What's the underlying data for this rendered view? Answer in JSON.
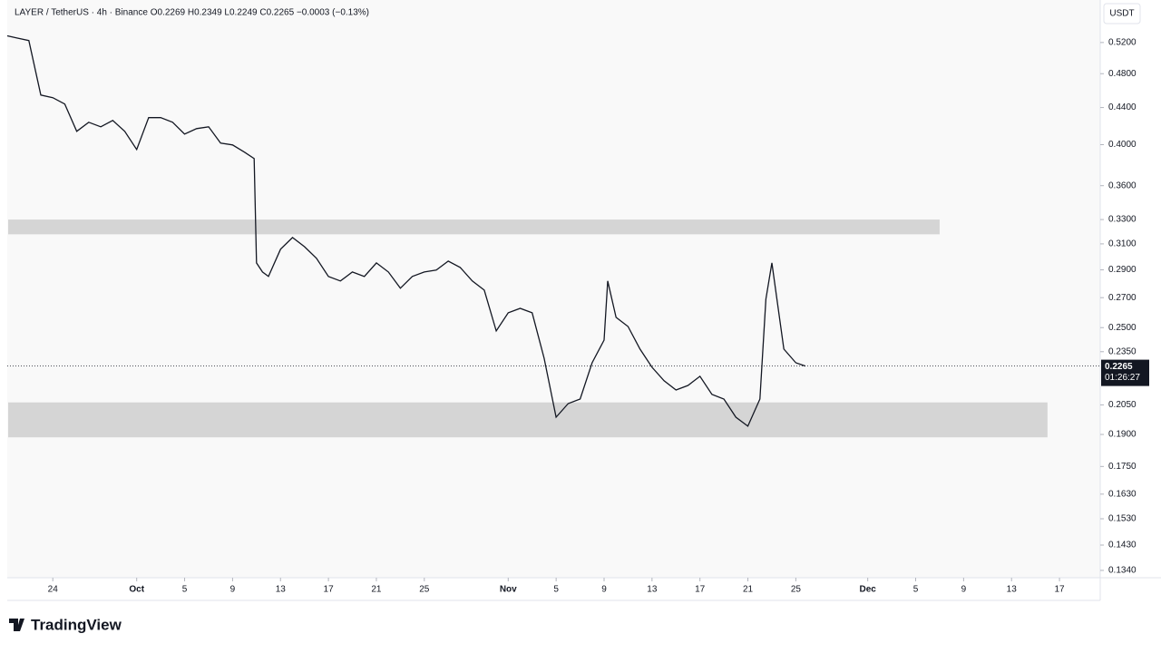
{
  "header": "LAYER / TetherUS · 4h · Binance  O0.2269  H0.2349  L0.2249  C0.2265  −0.0003 (−0.13%)",
  "currency": "USDT",
  "brand": "TradingView",
  "chart_data": {
    "type": "line",
    "log_scale": true,
    "color": "#131722",
    "x": [
      -10.8,
      -10,
      -9,
      -8,
      -7,
      -6,
      -5,
      -4,
      -3,
      -2,
      -1,
      0,
      1,
      2,
      3,
      4,
      5,
      6,
      7,
      8,
      9,
      9.8,
      10,
      10.5,
      11,
      12,
      13,
      14,
      15,
      16,
      17,
      18,
      19,
      20,
      21,
      22,
      23,
      24,
      25,
      26,
      27,
      28,
      29,
      30,
      31,
      32,
      33,
      34,
      35,
      36,
      37,
      38,
      39,
      39.3,
      40,
      41,
      42,
      43,
      44,
      45,
      46,
      47,
      48,
      49,
      50,
      51,
      52,
      52.5,
      53,
      54,
      55,
      55.8
    ],
    "series": [
      {
        "name": "LAYER / TetherUS",
        "color": "#131722",
        "values": [
          0.529,
          0.526,
          0.5226,
          0.4544,
          0.4513,
          0.444,
          0.4139,
          0.4237,
          0.4188,
          0.4257,
          0.4139,
          0.3951,
          0.4287,
          0.4287,
          0.4237,
          0.411,
          0.4168,
          0.4188,
          0.4016,
          0.3997,
          0.3923,
          0.386,
          0.2952,
          0.2884,
          0.2851,
          0.3058,
          0.3151,
          0.3078,
          0.2987,
          0.2851,
          0.2818,
          0.2884,
          0.2851,
          0.2952,
          0.2884,
          0.2766,
          0.2851,
          0.2884,
          0.2898,
          0.2966,
          0.2918,
          0.2818,
          0.2753,
          0.2479,
          0.2597,
          0.2627,
          0.2597,
          0.2311,
          0.1986,
          0.2057,
          0.2081,
          0.2284,
          0.2421,
          0.2818,
          0.2567,
          0.2507,
          0.2366,
          0.2258,
          0.2181,
          0.213,
          0.2155,
          0.2206,
          0.2106,
          0.2081,
          0.1986,
          0.1941,
          0.2081,
          0.269,
          0.2952,
          0.2366,
          0.2284,
          0.2265
        ]
      }
    ],
    "zones": [
      {
        "low": 0.3177,
        "high": 0.33,
        "x_end": 67
      },
      {
        "low": 0.1886,
        "high": 0.2063,
        "x_end": 76
      }
    ],
    "last_price": 0.2265,
    "last_price_label": "0.2265",
    "countdown": "01:26:27",
    "xlim": [
      -10.8,
      80.4
    ],
    "ylim": [
      0.1315,
      0.58
    ],
    "xticks": [
      {
        "value": -7,
        "label": "24"
      },
      {
        "value": 0,
        "label": "Oct"
      },
      {
        "value": 4,
        "label": "5"
      },
      {
        "value": 8,
        "label": "9"
      },
      {
        "value": 12,
        "label": "13"
      },
      {
        "value": 16,
        "label": "17"
      },
      {
        "value": 20,
        "label": "21"
      },
      {
        "value": 24,
        "label": "25"
      },
      {
        "value": 31,
        "label": "Nov"
      },
      {
        "value": 35,
        "label": "5"
      },
      {
        "value": 39,
        "label": "9"
      },
      {
        "value": 43,
        "label": "13"
      },
      {
        "value": 47,
        "label": "17"
      },
      {
        "value": 51,
        "label": "21"
      },
      {
        "value": 55,
        "label": "25"
      },
      {
        "value": 61,
        "label": "Dec"
      },
      {
        "value": 65,
        "label": "5"
      },
      {
        "value": 69,
        "label": "9"
      },
      {
        "value": 73,
        "label": "13"
      },
      {
        "value": 77,
        "label": "17"
      }
    ],
    "yticks": [
      {
        "value": 0.52,
        "label": "0.5200"
      },
      {
        "value": 0.48,
        "label": "0.4800"
      },
      {
        "value": 0.44,
        "label": "0.4400"
      },
      {
        "value": 0.4,
        "label": "0.4000"
      },
      {
        "value": 0.36,
        "label": "0.3600"
      },
      {
        "value": 0.33,
        "label": "0.3300"
      },
      {
        "value": 0.31,
        "label": "0.3100"
      },
      {
        "value": 0.29,
        "label": "0.2900"
      },
      {
        "value": 0.27,
        "label": "0.2700"
      },
      {
        "value": 0.25,
        "label": "0.2500"
      },
      {
        "value": 0.235,
        "label": "0.2350"
      },
      {
        "value": 0.205,
        "label": "0.2050"
      },
      {
        "value": 0.19,
        "label": "0.1900"
      },
      {
        "value": 0.175,
        "label": "0.1750"
      },
      {
        "value": 0.163,
        "label": "0.1630"
      },
      {
        "value": 0.153,
        "label": "0.1530"
      },
      {
        "value": 0.143,
        "label": "0.1430"
      },
      {
        "value": 0.134,
        "label": "0.1340"
      }
    ]
  }
}
